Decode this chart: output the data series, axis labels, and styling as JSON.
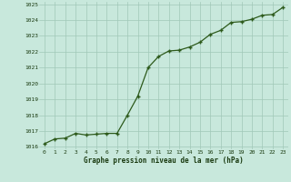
{
  "x": [
    0,
    1,
    2,
    3,
    4,
    5,
    6,
    7,
    8,
    9,
    10,
    11,
    12,
    13,
    14,
    15,
    16,
    17,
    18,
    19,
    20,
    21,
    22,
    23
  ],
  "y": [
    1016.2,
    1016.5,
    1016.55,
    1016.85,
    1016.75,
    1016.8,
    1016.85,
    1016.85,
    1018.0,
    1019.2,
    1021.0,
    1021.7,
    1022.05,
    1022.1,
    1022.3,
    1022.6,
    1023.1,
    1023.35,
    1023.85,
    1023.9,
    1024.05,
    1024.3,
    1024.35,
    1024.8
  ],
  "line_color": "#2d5a1b",
  "marker_color": "#2d5a1b",
  "bg_color": "#c8e8dc",
  "grid_color": "#a0c8b8",
  "xlabel": "Graphe pression niveau de la mer (hPa)",
  "xlabel_color": "#1a3a10",
  "tick_color": "#1a3a10",
  "ylim_min": 1016.0,
  "ylim_max": 1025.0,
  "xlim_min": 0,
  "xlim_max": 23,
  "yticks": [
    1016,
    1017,
    1018,
    1019,
    1020,
    1021,
    1022,
    1023,
    1024,
    1025
  ],
  "xticks": [
    0,
    1,
    2,
    3,
    4,
    5,
    6,
    7,
    8,
    9,
    10,
    11,
    12,
    13,
    14,
    15,
    16,
    17,
    18,
    19,
    20,
    21,
    22,
    23
  ],
  "xtick_labels": [
    "0",
    "1",
    "2",
    "3",
    "4",
    "5",
    "6",
    "7",
    "8",
    "9",
    "10",
    "11",
    "12",
    "13",
    "14",
    "15",
    "16",
    "17",
    "18",
    "19",
    "20",
    "21",
    "22",
    "23"
  ]
}
